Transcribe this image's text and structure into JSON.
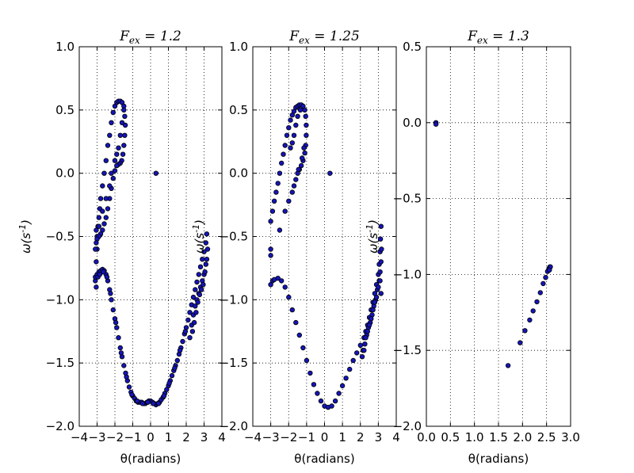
{
  "chart_data": [
    {
      "type": "scatter",
      "title": "F_ex = 1.2",
      "title_parts": {
        "base": "F",
        "sub": "ex",
        "rest": " = 1.2"
      },
      "xlabel": "θ(radians)",
      "ylabel": "ω(s^-1)",
      "xlim": [
        -4,
        4
      ],
      "ylim": [
        -2.0,
        1.0
      ],
      "xticks": [
        -4,
        -3,
        -2,
        -1,
        0,
        1,
        2,
        3,
        4
      ],
      "xtick_labels": [
        "−4",
        "−3",
        "−2",
        "−1",
        "0",
        "1",
        "2",
        "3",
        "4"
      ],
      "yticks": [
        1.0,
        0.5,
        0.0,
        -0.5,
        -1.0,
        -1.5,
        -2.0
      ],
      "ytick_labels": [
        "1.0",
        "0.5",
        "0.0",
        "−0.5",
        "−1.0",
        "−1.5",
        "−2.0"
      ],
      "grid": true,
      "marker_color": "#1515b8",
      "points": [
        [
          -3.1,
          -0.85
        ],
        [
          -3.05,
          -0.7
        ],
        [
          -3.0,
          -0.6
        ],
        [
          -3.0,
          -0.5
        ],
        [
          -2.95,
          -0.42
        ],
        [
          -2.9,
          -0.35
        ],
        [
          -2.85,
          -0.28
        ],
        [
          -2.8,
          -0.2
        ],
        [
          -2.7,
          -0.1
        ],
        [
          -2.6,
          0.0
        ],
        [
          -2.5,
          0.1
        ],
        [
          -2.4,
          0.22
        ],
        [
          -2.3,
          0.3
        ],
        [
          -2.2,
          0.4
        ],
        [
          -2.1,
          0.48
        ],
        [
          -2.0,
          0.53
        ],
        [
          -1.9,
          0.56
        ],
        [
          -1.8,
          0.57
        ],
        [
          -1.7,
          0.57
        ],
        [
          -1.6,
          0.56
        ],
        [
          -1.5,
          0.53
        ],
        [
          -1.45,
          0.45
        ],
        [
          -1.42,
          0.38
        ],
        [
          -1.45,
          0.3
        ],
        [
          -1.5,
          0.22
        ],
        [
          -1.55,
          0.15
        ],
        [
          -1.62,
          0.1
        ],
        [
          -1.7,
          0.08
        ],
        [
          -1.8,
          0.07
        ],
        [
          -1.9,
          0.06
        ],
        [
          -2.0,
          0.02
        ],
        [
          -2.1,
          -0.04
        ],
        [
          -2.2,
          -0.12
        ],
        [
          -2.3,
          -0.2
        ],
        [
          -2.4,
          -0.28
        ],
        [
          -2.5,
          -0.35
        ],
        [
          -2.6,
          -0.4
        ],
        [
          -2.7,
          -0.45
        ],
        [
          -2.8,
          -0.48
        ],
        [
          -2.9,
          -0.5
        ],
        [
          -3.0,
          -0.52
        ],
        [
          -3.05,
          -0.55
        ],
        [
          -3.1,
          -0.6
        ],
        [
          -1.6,
          0.4
        ],
        [
          -1.7,
          0.3
        ],
        [
          -1.8,
          0.2
        ],
        [
          -1.9,
          0.15
        ],
        [
          -2.0,
          0.1
        ],
        [
          -1.5,
          0.5
        ],
        [
          -2.2,
          0.0
        ],
        [
          -2.3,
          -0.1
        ],
        [
          -2.5,
          -0.2
        ],
        [
          -2.7,
          -0.3
        ],
        [
          -2.9,
          -0.42
        ],
        [
          -3.05,
          -0.45
        ],
        [
          0.3,
          0.0
        ],
        [
          -3.1,
          -0.82
        ],
        [
          -3.0,
          -0.8
        ],
        [
          -2.9,
          -0.78
        ],
        [
          -2.8,
          -0.77
        ],
        [
          -2.7,
          -0.76
        ],
        [
          -2.6,
          -0.77
        ],
        [
          -2.5,
          -0.8
        ],
        [
          -2.4,
          -0.85
        ],
        [
          -2.3,
          -0.92
        ],
        [
          -2.2,
          -1.0
        ],
        [
          -2.1,
          -1.08
        ],
        [
          -2.0,
          -1.15
        ],
        [
          -1.9,
          -1.22
        ],
        [
          -1.8,
          -1.3
        ],
        [
          -1.7,
          -1.38
        ],
        [
          -1.6,
          -1.45
        ],
        [
          -1.5,
          -1.52
        ],
        [
          -1.4,
          -1.58
        ],
        [
          -1.3,
          -1.64
        ],
        [
          -1.2,
          -1.69
        ],
        [
          -1.1,
          -1.73
        ],
        [
          -1.0,
          -1.76
        ],
        [
          -0.9,
          -1.78
        ],
        [
          -0.8,
          -1.8
        ],
        [
          -0.7,
          -1.81
        ],
        [
          -0.6,
          -1.81
        ],
        [
          -0.5,
          -1.81
        ],
        [
          -0.4,
          -1.82
        ],
        [
          -0.3,
          -1.82
        ],
        [
          -0.2,
          -1.81
        ],
        [
          -0.1,
          -1.8
        ],
        [
          0.0,
          -1.8
        ],
        [
          0.1,
          -1.81
        ],
        [
          0.2,
          -1.82
        ],
        [
          0.3,
          -1.83
        ],
        [
          0.4,
          -1.82
        ],
        [
          0.5,
          -1.81
        ],
        [
          0.6,
          -1.79
        ],
        [
          0.7,
          -1.77
        ],
        [
          0.8,
          -1.74
        ],
        [
          0.9,
          -1.71
        ],
        [
          1.0,
          -1.68
        ],
        [
          1.1,
          -1.64
        ],
        [
          1.2,
          -1.6
        ],
        [
          1.3,
          -1.56
        ],
        [
          1.4,
          -1.52
        ],
        [
          1.5,
          -1.48
        ],
        [
          1.6,
          -1.43
        ],
        [
          1.7,
          -1.38
        ],
        [
          1.8,
          -1.33
        ],
        [
          1.9,
          -1.27
        ],
        [
          2.0,
          -1.22
        ],
        [
          2.1,
          -1.16
        ],
        [
          2.2,
          -1.1
        ],
        [
          2.3,
          -1.04
        ],
        [
          2.4,
          -0.98
        ],
        [
          2.5,
          -0.92
        ],
        [
          2.6,
          -0.86
        ],
        [
          2.7,
          -0.8
        ],
        [
          2.8,
          -0.74
        ],
        [
          2.9,
          -0.68
        ],
        [
          3.0,
          -0.62
        ],
        [
          3.1,
          -0.55
        ],
        [
          3.15,
          -0.48
        ],
        [
          2.2,
          -1.3
        ],
        [
          2.3,
          -1.2
        ],
        [
          2.4,
          -1.12
        ],
        [
          2.5,
          -1.05
        ],
        [
          2.6,
          -1.0
        ],
        [
          2.7,
          -0.95
        ],
        [
          2.8,
          -0.9
        ],
        [
          2.9,
          -0.85
        ],
        [
          3.0,
          -0.8
        ],
        [
          3.1,
          -0.72
        ],
        [
          2.35,
          -1.25
        ],
        [
          2.45,
          -1.18
        ],
        [
          2.55,
          -1.1
        ],
        [
          2.65,
          -1.02
        ],
        [
          2.75,
          -0.96
        ],
        [
          2.85,
          -0.92
        ],
        [
          2.95,
          -0.88
        ],
        [
          3.05,
          -0.78
        ],
        [
          3.15,
          -0.68
        ],
        [
          3.2,
          -0.6
        ],
        [
          -3.05,
          -0.9
        ],
        [
          -2.95,
          -0.82
        ],
        [
          -2.85,
          -0.8
        ],
        [
          -2.65,
          -0.78
        ],
        [
          -2.45,
          -0.82
        ],
        [
          -2.25,
          -0.95
        ],
        [
          -1.95,
          -1.18
        ],
        [
          -1.65,
          -1.42
        ],
        [
          -1.35,
          -1.61
        ],
        [
          -1.05,
          -1.75
        ],
        [
          -0.75,
          -1.8
        ],
        [
          -0.45,
          -1.82
        ],
        [
          -0.15,
          -1.81
        ],
        [
          0.15,
          -1.82
        ],
        [
          0.45,
          -1.82
        ],
        [
          0.75,
          -1.76
        ],
        [
          1.05,
          -1.66
        ],
        [
          1.35,
          -1.54
        ],
        [
          1.65,
          -1.4
        ],
        [
          1.95,
          -1.25
        ]
      ]
    },
    {
      "type": "scatter",
      "title": "F_ex = 1.25",
      "title_parts": {
        "base": "F",
        "sub": "ex",
        "rest": " = 1.25"
      },
      "xlabel": "θ(radians)",
      "ylabel": "ω(s^-1)",
      "xlim": [
        -4,
        4
      ],
      "ylim": [
        -2.0,
        1.0
      ],
      "xticks": [
        -4,
        -3,
        -2,
        -1,
        0,
        1,
        2,
        3,
        4
      ],
      "xtick_labels": [
        "−4",
        "−3",
        "−2",
        "−1",
        "0",
        "1",
        "2",
        "3",
        "4"
      ],
      "yticks": [
        1.0,
        0.5,
        0.0,
        -0.5,
        -1.0,
        -1.5,
        -2.0
      ],
      "ytick_labels": [
        "1.0",
        "0.5",
        "0.0",
        "−0.5",
        "−1.0",
        "−1.5",
        "−2.0"
      ],
      "grid": true,
      "marker_color": "#1515b8",
      "points": [
        [
          -3.0,
          -0.38
        ],
        [
          -2.9,
          -0.3
        ],
        [
          -2.8,
          -0.22
        ],
        [
          -2.7,
          -0.15
        ],
        [
          -2.6,
          -0.08
        ],
        [
          -2.5,
          0.0
        ],
        [
          -2.4,
          0.08
        ],
        [
          -2.3,
          0.15
        ],
        [
          -2.2,
          0.22
        ],
        [
          -2.1,
          0.3
        ],
        [
          -2.0,
          0.36
        ],
        [
          -1.9,
          0.42
        ],
        [
          -1.8,
          0.46
        ],
        [
          -1.7,
          0.49
        ],
        [
          -1.6,
          0.52
        ],
        [
          -1.5,
          0.53
        ],
        [
          -1.4,
          0.54
        ],
        [
          -1.3,
          0.54
        ],
        [
          -1.2,
          0.53
        ],
        [
          -1.1,
          0.5
        ],
        [
          -1.05,
          0.45
        ],
        [
          -1.02,
          0.38
        ],
        [
          -1.02,
          0.3
        ],
        [
          -1.05,
          0.22
        ],
        [
          -1.1,
          0.16
        ],
        [
          -1.2,
          0.1
        ],
        [
          -1.3,
          0.06
        ],
        [
          -1.4,
          0.03
        ],
        [
          -1.5,
          0.0
        ],
        [
          -1.6,
          -0.05
        ],
        [
          -1.7,
          -0.1
        ],
        [
          -1.8,
          -0.15
        ],
        [
          -2.0,
          -0.22
        ],
        [
          -2.2,
          -0.3
        ],
        [
          -1.5,
          0.45
        ],
        [
          -1.6,
          0.38
        ],
        [
          -1.7,
          0.3
        ],
        [
          -1.8,
          0.24
        ],
        [
          -1.9,
          0.2
        ],
        [
          -1.35,
          0.5
        ],
        [
          -1.15,
          0.2
        ],
        [
          -1.25,
          0.12
        ],
        [
          -1.45,
          0.03
        ],
        [
          -2.5,
          -0.45
        ],
        [
          -3.0,
          -0.6
        ],
        [
          -3.0,
          -0.65
        ],
        [
          0.3,
          0.0
        ],
        [
          -3.0,
          -0.88
        ],
        [
          -2.9,
          -0.85
        ],
        [
          -2.8,
          -0.84
        ],
        [
          -2.6,
          -0.83
        ],
        [
          -2.4,
          -0.85
        ],
        [
          -2.2,
          -0.9
        ],
        [
          -2.0,
          -0.98
        ],
        [
          -1.8,
          -1.08
        ],
        [
          -1.6,
          -1.18
        ],
        [
          -1.4,
          -1.28
        ],
        [
          -1.2,
          -1.38
        ],
        [
          -1.0,
          -1.48
        ],
        [
          -0.8,
          -1.58
        ],
        [
          -0.6,
          -1.67
        ],
        [
          -0.4,
          -1.74
        ],
        [
          -0.2,
          -1.8
        ],
        [
          0.0,
          -1.84
        ],
        [
          0.2,
          -1.85
        ],
        [
          0.4,
          -1.84
        ],
        [
          0.6,
          -1.8
        ],
        [
          0.8,
          -1.74
        ],
        [
          1.0,
          -1.68
        ],
        [
          1.2,
          -1.62
        ],
        [
          1.4,
          -1.55
        ],
        [
          1.6,
          -1.48
        ],
        [
          1.8,
          -1.42
        ],
        [
          2.0,
          -1.36
        ],
        [
          2.2,
          -1.3
        ],
        [
          2.3,
          -1.25
        ],
        [
          2.4,
          -1.2
        ],
        [
          2.5,
          -1.14
        ],
        [
          2.6,
          -1.08
        ],
        [
          2.7,
          -1.02
        ],
        [
          2.8,
          -0.95
        ],
        [
          2.9,
          -0.88
        ],
        [
          3.0,
          -0.8
        ],
        [
          3.05,
          -0.72
        ],
        [
          3.1,
          -0.62
        ],
        [
          3.12,
          -0.52
        ],
        [
          3.15,
          -0.42
        ],
        [
          2.1,
          -1.45
        ],
        [
          2.15,
          -1.4
        ],
        [
          2.25,
          -1.35
        ],
        [
          2.35,
          -1.28
        ],
        [
          2.45,
          -1.22
        ],
        [
          2.55,
          -1.18
        ],
        [
          2.65,
          -1.12
        ],
        [
          2.75,
          -1.05
        ],
        [
          2.85,
          -1.0
        ],
        [
          2.95,
          -0.92
        ],
        [
          3.05,
          -0.85
        ],
        [
          3.1,
          -0.78
        ],
        [
          3.15,
          -0.7
        ],
        [
          2.2,
          -1.4
        ],
        [
          2.3,
          -1.3
        ],
        [
          2.4,
          -1.25
        ],
        [
          2.5,
          -1.2
        ],
        [
          2.6,
          -1.15
        ],
        [
          2.7,
          -1.08
        ],
        [
          2.8,
          -1.02
        ],
        [
          2.9,
          -0.98
        ],
        [
          3.0,
          -0.9
        ],
        [
          3.1,
          -0.85
        ],
        [
          3.15,
          -0.95
        ],
        [
          3.18,
          -0.6
        ]
      ]
    },
    {
      "type": "scatter",
      "title": "F_ex = 1.3",
      "title_parts": {
        "base": "F",
        "sub": "ex",
        "rest": " = 1.3"
      },
      "xlabel": "θ(radians)",
      "ylabel": "ω(s^-1)",
      "xlim": [
        0.0,
        3.0
      ],
      "ylim": [
        -2.0,
        0.5
      ],
      "xticks": [
        0.0,
        0.5,
        1.0,
        1.5,
        2.0,
        2.5,
        3.0
      ],
      "xtick_labels": [
        "0.0",
        "0.5",
        "1.0",
        "1.5",
        "2.0",
        "2.5",
        "3.0"
      ],
      "yticks": [
        0.5,
        0.0,
        -0.5,
        -1.0,
        -1.5,
        -2.0
      ],
      "ytick_labels": [
        "0.5",
        "0.0",
        "−0.5",
        "−1.0",
        "−1.5",
        "−2.0"
      ],
      "grid": true,
      "marker_color": "#1515b8",
      "points": [
        [
          0.2,
          0.0
        ],
        [
          0.2,
          -0.01
        ],
        [
          1.7,
          -1.6
        ],
        [
          1.95,
          -1.45
        ],
        [
          2.05,
          -1.37
        ],
        [
          2.15,
          -1.3
        ],
        [
          2.22,
          -1.24
        ],
        [
          2.3,
          -1.18
        ],
        [
          2.37,
          -1.12
        ],
        [
          2.43,
          -1.06
        ],
        [
          2.48,
          -1.02
        ],
        [
          2.52,
          -0.98
        ],
        [
          2.55,
          -0.96
        ],
        [
          2.57,
          -0.95
        ],
        [
          2.58,
          -0.95
        ],
        [
          2.56,
          -0.97
        ]
      ]
    }
  ]
}
